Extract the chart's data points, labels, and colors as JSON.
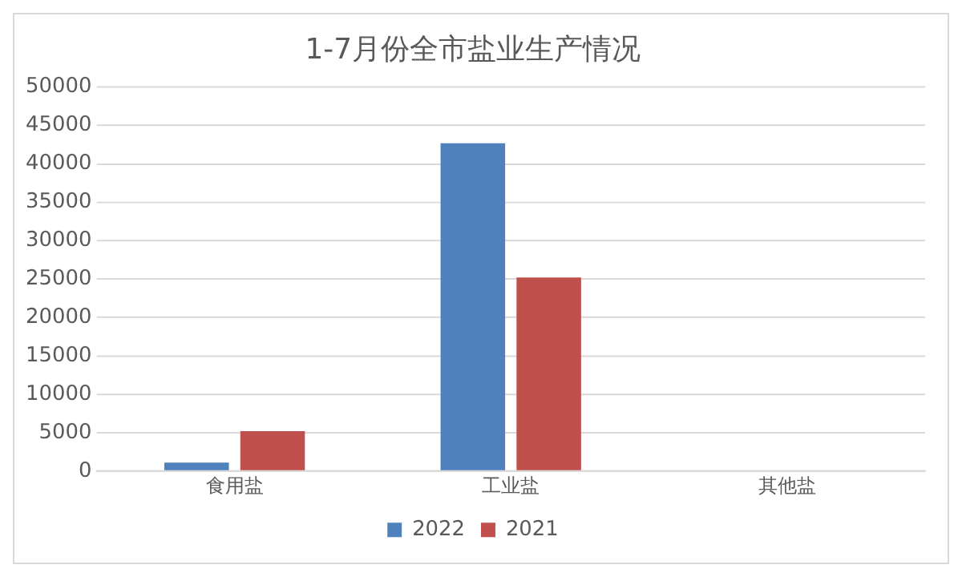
{
  "chart_data": {
    "type": "bar",
    "title": "1-7月份全市盐业生产情况",
    "categories": [
      "食用盐",
      "工业盐",
      "其他盐"
    ],
    "series": [
      {
        "name": "2022",
        "color": "#4f81bd",
        "values": [
          1100,
          42700,
          0
        ]
      },
      {
        "name": "2021",
        "color": "#c0504d",
        "values": [
          5200,
          25200,
          0
        ]
      }
    ],
    "ylim": [
      0,
      50000
    ],
    "yticks": [
      0,
      5000,
      10000,
      15000,
      20000,
      25000,
      30000,
      35000,
      40000,
      45000,
      50000
    ],
    "grid": "y",
    "legend": "bottom"
  }
}
